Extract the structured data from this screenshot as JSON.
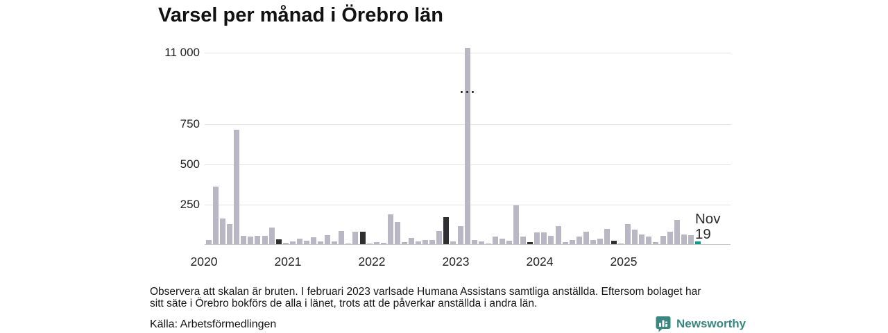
{
  "title": "Varsel per månad i Örebro län",
  "chart_data": {
    "type": "bar",
    "unit": "varsel (antal per månad)",
    "series_by_year": [
      {
        "year": "2020",
        "values": [
          25,
          357,
          160,
          127,
          710,
          50,
          47,
          50,
          50,
          105,
          30,
          8
        ]
      },
      {
        "year": "2021",
        "values": [
          17,
          33,
          23,
          45,
          19,
          55,
          19,
          83,
          4,
          76,
          76,
          2
        ]
      },
      {
        "year": "2022",
        "values": [
          13,
          7,
          184,
          138,
          13,
          37,
          19,
          26,
          26,
          82,
          168,
          17
        ]
      },
      {
        "year": "2023",
        "values": [
          112,
          11300,
          26,
          17,
          4,
          47,
          34,
          22,
          241,
          47,
          13,
          73
        ]
      },
      {
        "year": "2024",
        "values": [
          73,
          52,
          112,
          13,
          26,
          47,
          78,
          26,
          33,
          95,
          20,
          2
        ]
      },
      {
        "year": "2025",
        "values": [
          125,
          91,
          60,
          47,
          13,
          52,
          78,
          151,
          60,
          56,
          19
        ]
      }
    ],
    "x_axis": {
      "tick_labels": [
        "2020",
        "2021",
        "2022",
        "2023",
        "2024",
        "2025"
      ]
    },
    "y_axis": {
      "ticks": [
        "250",
        "500",
        "750",
        "11 000"
      ],
      "tick_values": [
        250,
        500,
        750,
        11000
      ],
      "broken_scale": true,
      "break_start": 800,
      "grid": true
    },
    "highlight_month_index": 10,
    "highlight_note": "November highlighted each year; latest month in accent color",
    "outlier": {
      "year": "2023",
      "month": "februari",
      "value": 11300,
      "marker": "scale-break-dots"
    },
    "latest": {
      "month_label": "Nov",
      "value_label": "19",
      "year": "2025"
    },
    "colors": {
      "default": "#b9b7c3",
      "same_month_previous_years": "#2f2e30",
      "latest": "#0b9a8d",
      "gridline": "#e3e3e3"
    }
  },
  "footnote_lines": [
    "Observera att skalan är bruten. I februari 2023 varlsade Humana Assistans samtliga anställda. Eftersom bolaget har",
    "sitt säte i Örebro bokförs de alla i länet, trots att de påverkar anställda i andra län."
  ],
  "source": "Källa: Arbetsförmedlingen",
  "branding": {
    "name": "Newsworthy",
    "icon": "bar-chart-speech-bubble-icon",
    "color": "#3a8781"
  }
}
